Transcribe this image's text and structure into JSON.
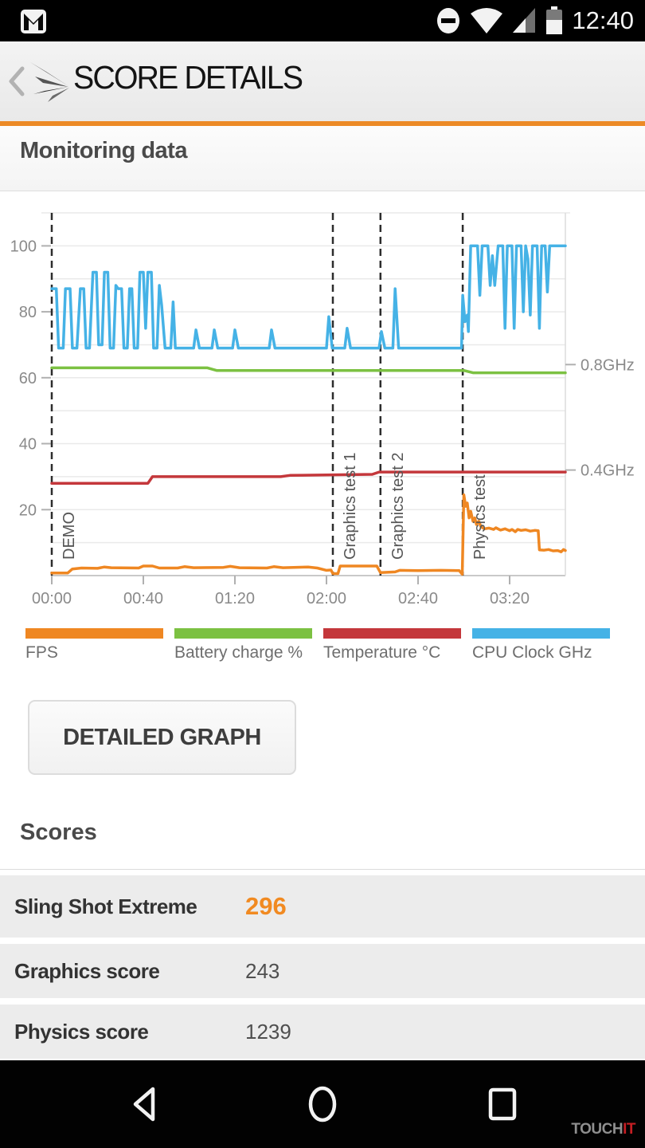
{
  "colors": {
    "accent": "#ec8a26",
    "row_bg": "#ececec"
  },
  "status_bar": {
    "time": "12:40",
    "icons": [
      "gmail-icon",
      "do-not-disturb-icon",
      "wifi-icon",
      "cellular-signal-icon",
      "battery-icon"
    ]
  },
  "header": {
    "title": "SCORE DETAILS"
  },
  "monitoring": {
    "title": "Monitoring data"
  },
  "chart_data": {
    "type": "line",
    "title": "Monitoring data",
    "x_axis": {
      "range_seconds": [
        0,
        224.35
      ],
      "ticks": [
        {
          "t": 0,
          "label": "00:00"
        },
        {
          "t": 40,
          "label": "00:40"
        },
        {
          "t": 80,
          "label": "01:20"
        },
        {
          "t": 120,
          "label": "02:00"
        },
        {
          "t": 160,
          "label": "02:40"
        },
        {
          "t": 200,
          "label": "03:20"
        }
      ]
    },
    "y_axis_left": {
      "range": [
        0,
        110
      ],
      "ticks": [
        20,
        40,
        60,
        80,
        100
      ]
    },
    "y_axis_right": [
      {
        "label": "0.8GHz",
        "at": 64
      },
      {
        "label": "0.4GHz",
        "at": 32
      }
    ],
    "markers": [
      {
        "t": 0,
        "label": "DEMO"
      },
      {
        "t": 122.8,
        "label": "Graphics test 1"
      },
      {
        "t": 143.6,
        "label": "Graphics test 2"
      },
      {
        "t": 179.5,
        "label": "Physics test"
      }
    ],
    "grid": true,
    "series": [
      {
        "name": "Battery charge %",
        "color": "#7cc142",
        "points": [
          [
            0,
            63
          ],
          [
            68,
            63
          ],
          [
            72,
            62.2
          ],
          [
            180,
            62.2
          ],
          [
            184,
            61.5
          ],
          [
            224.35,
            61.5
          ]
        ]
      },
      {
        "name": "Temperature °C",
        "color": "#c4373b",
        "points": [
          [
            0,
            28
          ],
          [
            42,
            28
          ],
          [
            44,
            30
          ],
          [
            100,
            30
          ],
          [
            104,
            30.4
          ],
          [
            140,
            30.7
          ],
          [
            143,
            31.4
          ],
          [
            224.35,
            31.4
          ]
        ]
      },
      {
        "name": "FPS",
        "color": "#ef8722",
        "points": [
          [
            0,
            0.8
          ],
          [
            7,
            0.8
          ],
          [
            9,
            2
          ],
          [
            13,
            2.3
          ],
          [
            20,
            2.2
          ],
          [
            23,
            2.6
          ],
          [
            26,
            2.4
          ],
          [
            38,
            2.3
          ],
          [
            40,
            2.9
          ],
          [
            44,
            2.9
          ],
          [
            47,
            2.3
          ],
          [
            55,
            2.3
          ],
          [
            58,
            2.7
          ],
          [
            62,
            2.4
          ],
          [
            75,
            2.5
          ],
          [
            78,
            2.8
          ],
          [
            82,
            2.4
          ],
          [
            94,
            2.3
          ],
          [
            97,
            2.7
          ],
          [
            101,
            2.4
          ],
          [
            112,
            2.6
          ],
          [
            116,
            2.3
          ],
          [
            120,
            1.6
          ],
          [
            122,
            1.7
          ],
          [
            122.8,
            0.6
          ],
          [
            125,
            0.6
          ],
          [
            126,
            2.9
          ],
          [
            142,
            2.9
          ],
          [
            143.6,
            0.9
          ],
          [
            150,
            1.1
          ],
          [
            152,
            1.6
          ],
          [
            160,
            1.5
          ],
          [
            170,
            1.6
          ],
          [
            178,
            1.5
          ],
          [
            179.3,
            0.4
          ],
          [
            180,
            24.5
          ],
          [
            180.8,
            21
          ],
          [
            181.5,
            22
          ],
          [
            182.3,
            17.5
          ],
          [
            183,
            19.5
          ],
          [
            184,
            16.5
          ],
          [
            184.8,
            17.5
          ],
          [
            185.5,
            15.5
          ],
          [
            186.5,
            16.5
          ],
          [
            187.5,
            14.8
          ],
          [
            189,
            14.2
          ],
          [
            191,
            14.4
          ],
          [
            193,
            14
          ],
          [
            194,
            14.5
          ],
          [
            196,
            13.8
          ],
          [
            198,
            14.2
          ],
          [
            200,
            13.6
          ],
          [
            201,
            14
          ],
          [
            202.5,
            13.3
          ],
          [
            203.5,
            14
          ],
          [
            205,
            13.7
          ],
          [
            207,
            13.9
          ],
          [
            209,
            13.5
          ],
          [
            211,
            13.7
          ],
          [
            212.5,
            13.6
          ],
          [
            213,
            7.8
          ],
          [
            215,
            7.7
          ],
          [
            217,
            7.9
          ],
          [
            219,
            7.5
          ],
          [
            221,
            7.6
          ],
          [
            222.5,
            7.2
          ],
          [
            223.5,
            7.9
          ],
          [
            224.35,
            7.6
          ]
        ]
      },
      {
        "name": "CPU Clock GHz",
        "color": "#45b2e6",
        "points": [
          [
            0,
            87
          ],
          [
            2,
            87
          ],
          [
            3,
            69
          ],
          [
            5,
            69
          ],
          [
            6,
            87
          ],
          [
            8,
            87
          ],
          [
            9,
            69
          ],
          [
            11,
            69
          ],
          [
            12.5,
            87
          ],
          [
            14,
            87
          ],
          [
            15,
            69
          ],
          [
            16.5,
            69
          ],
          [
            18,
            92
          ],
          [
            19.5,
            92
          ],
          [
            20.5,
            70
          ],
          [
            22,
            70
          ],
          [
            23,
            92
          ],
          [
            24.5,
            92
          ],
          [
            25.5,
            69
          ],
          [
            27,
            69
          ],
          [
            28,
            88
          ],
          [
            29,
            87
          ],
          [
            30.5,
            87
          ],
          [
            31.5,
            69
          ],
          [
            33,
            69
          ],
          [
            34,
            87
          ],
          [
            35,
            87
          ],
          [
            36,
            69
          ],
          [
            37.5,
            69
          ],
          [
            38.5,
            92
          ],
          [
            40,
            92
          ],
          [
            41,
            75
          ],
          [
            42,
            92
          ],
          [
            43.5,
            92
          ],
          [
            44.5,
            69
          ],
          [
            46,
            69
          ],
          [
            47,
            88
          ],
          [
            48,
            82
          ],
          [
            49.5,
            69
          ],
          [
            52,
            69
          ],
          [
            53,
            83
          ],
          [
            54,
            69
          ],
          [
            57,
            69
          ],
          [
            62,
            69
          ],
          [
            63,
            74.5
          ],
          [
            64.5,
            69
          ],
          [
            70,
            69
          ],
          [
            71,
            74.5
          ],
          [
            72.5,
            69
          ],
          [
            79,
            69
          ],
          [
            80,
            74.5
          ],
          [
            81.5,
            69
          ],
          [
            95,
            69
          ],
          [
            96,
            74.5
          ],
          [
            97.5,
            69
          ],
          [
            110,
            69
          ],
          [
            120,
            69
          ],
          [
            121,
            78.5
          ],
          [
            122.5,
            69
          ],
          [
            128,
            69
          ],
          [
            129,
            75
          ],
          [
            130.5,
            69
          ],
          [
            143,
            69
          ],
          [
            144,
            74
          ],
          [
            145.5,
            69
          ],
          [
            149,
            69
          ],
          [
            150,
            87
          ],
          [
            151.5,
            69
          ],
          [
            179,
            69
          ],
          [
            179.5,
            85
          ],
          [
            180.5,
            77
          ],
          [
            181.5,
            79
          ],
          [
            182,
            74
          ],
          [
            183,
            100
          ],
          [
            186,
            100
          ],
          [
            187,
            85
          ],
          [
            188,
            100
          ],
          [
            190.5,
            100
          ],
          [
            191.5,
            88
          ],
          [
            192.5,
            97
          ],
          [
            193.5,
            88
          ],
          [
            195,
            100
          ],
          [
            197,
            100
          ],
          [
            198,
            75
          ],
          [
            199,
            100
          ],
          [
            201,
            100
          ],
          [
            202,
            75
          ],
          [
            203,
            100
          ],
          [
            205,
            100
          ],
          [
            206,
            80
          ],
          [
            207,
            100
          ],
          [
            208,
            96
          ],
          [
            209,
            79
          ],
          [
            210,
            100
          ],
          [
            212,
            100
          ],
          [
            213,
            75
          ],
          [
            214,
            100
          ],
          [
            215.5,
            100
          ],
          [
            216.5,
            86
          ],
          [
            217.5,
            100
          ],
          [
            224.35,
            100
          ]
        ]
      }
    ]
  },
  "legend": {
    "items": [
      {
        "label": "FPS",
        "color": "#ef8722"
      },
      {
        "label": "Battery charge %",
        "color": "#7cc142"
      },
      {
        "label": "Temperature °C",
        "color": "#c4373b"
      },
      {
        "label": "CPU Clock GHz",
        "color": "#45b2e6"
      }
    ]
  },
  "detailed_graph_button": {
    "label": "DETAILED GRAPH"
  },
  "scores": {
    "title": "Scores",
    "rows": [
      {
        "label": "Sling Shot Extreme",
        "value": "296",
        "value_color": "#f18a21"
      },
      {
        "label": "Graphics score",
        "value": "243"
      },
      {
        "label": "Physics score",
        "value": "1239"
      }
    ]
  },
  "nav_bar": {
    "icons": [
      "back-icon",
      "home-icon",
      "recents-icon"
    ]
  },
  "watermark": {
    "gray": "TOUCH",
    "red": "IT"
  }
}
